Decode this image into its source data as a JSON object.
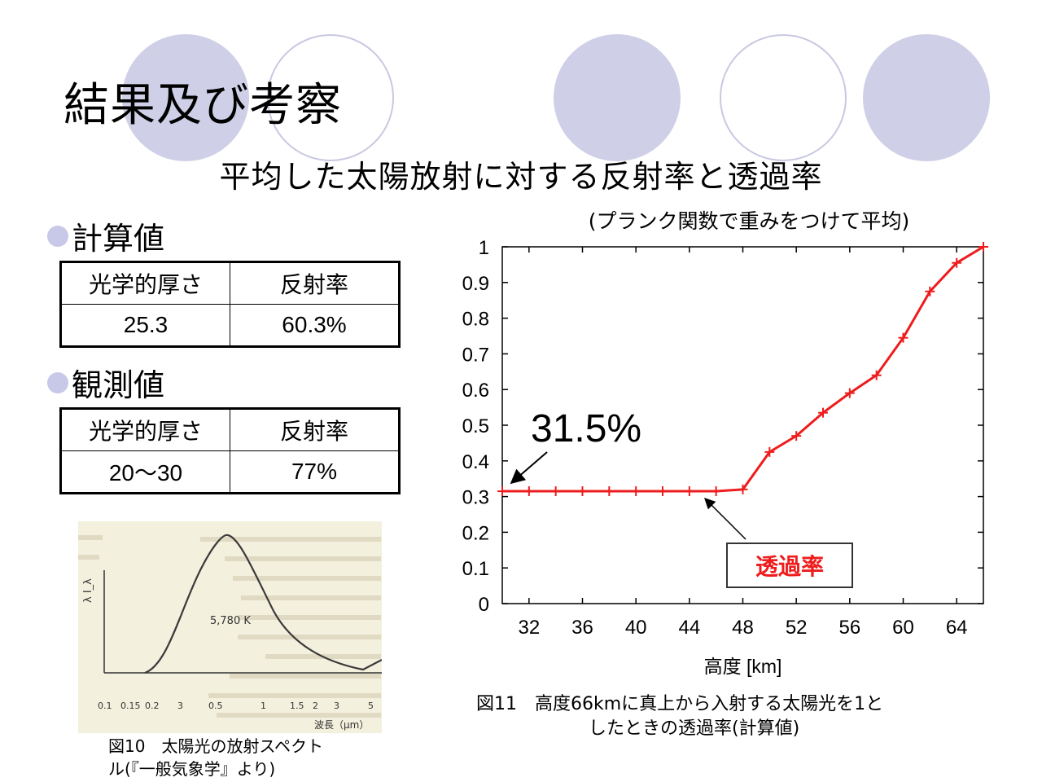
{
  "slide": {
    "title": "結果及び考察",
    "subtitle": "平均した太陽放射に対する反射率と透過率",
    "calc_heading": "計算値",
    "obs_heading": "観測値"
  },
  "calc_table": {
    "headers": [
      "光学的厚さ",
      "反射率"
    ],
    "row": [
      "25.3",
      "60.3%"
    ]
  },
  "obs_table": {
    "headers": [
      "光学的厚さ",
      "反射率"
    ],
    "row": [
      "20〜30",
      "77%"
    ]
  },
  "spectrum": {
    "ylabel": "λ I_λ",
    "peak_label": "5,780 K",
    "xlabel": "波長（μm）",
    "ticks": [
      "0.1",
      "0.15",
      "0.2",
      "3",
      "0.5",
      "1",
      "1.5",
      "2",
      "3",
      "5"
    ],
    "caption_line1": "図10　太陽光の放射スペクト",
    "caption_line2": "ル(『一般気象学』より)"
  },
  "figure11": {
    "caption_line1": "図11　高度66kmに真上から入射する太陽光を1と",
    "caption_line2": "したときの透過率(計算値)"
  },
  "colors": {
    "accent_circle": "#cfcfe8",
    "series_line": "#ee1c1c",
    "series_label": "#ee1c1c"
  },
  "chart_data": {
    "type": "line",
    "title": "(プランク関数で重みをつけて平均)",
    "xlabel": "高度 [km]",
    "ylabel": "",
    "xlim": [
      30,
      66
    ],
    "ylim": [
      0,
      1
    ],
    "xticks": [
      "32",
      "36",
      "40",
      "44",
      "48",
      "52",
      "56",
      "60",
      "64"
    ],
    "yticks": [
      "0",
      "0.1",
      "0.2",
      "0.3",
      "0.4",
      "0.5",
      "0.6",
      "0.7",
      "0.8",
      "0.9",
      "1"
    ],
    "grid": false,
    "series": [
      {
        "name": "透過率",
        "x": [
          30,
          32,
          34,
          36,
          38,
          40,
          42,
          44,
          46,
          48,
          50,
          52,
          54,
          56,
          58,
          60,
          62,
          64,
          66
        ],
        "y": [
          0.315,
          0.315,
          0.315,
          0.315,
          0.315,
          0.315,
          0.315,
          0.315,
          0.315,
          0.32,
          0.425,
          0.47,
          0.535,
          0.59,
          0.64,
          0.745,
          0.875,
          0.955,
          1.0
        ]
      }
    ],
    "annotations": [
      {
        "text": "31.5%"
      },
      {
        "text": "透過率"
      }
    ]
  }
}
